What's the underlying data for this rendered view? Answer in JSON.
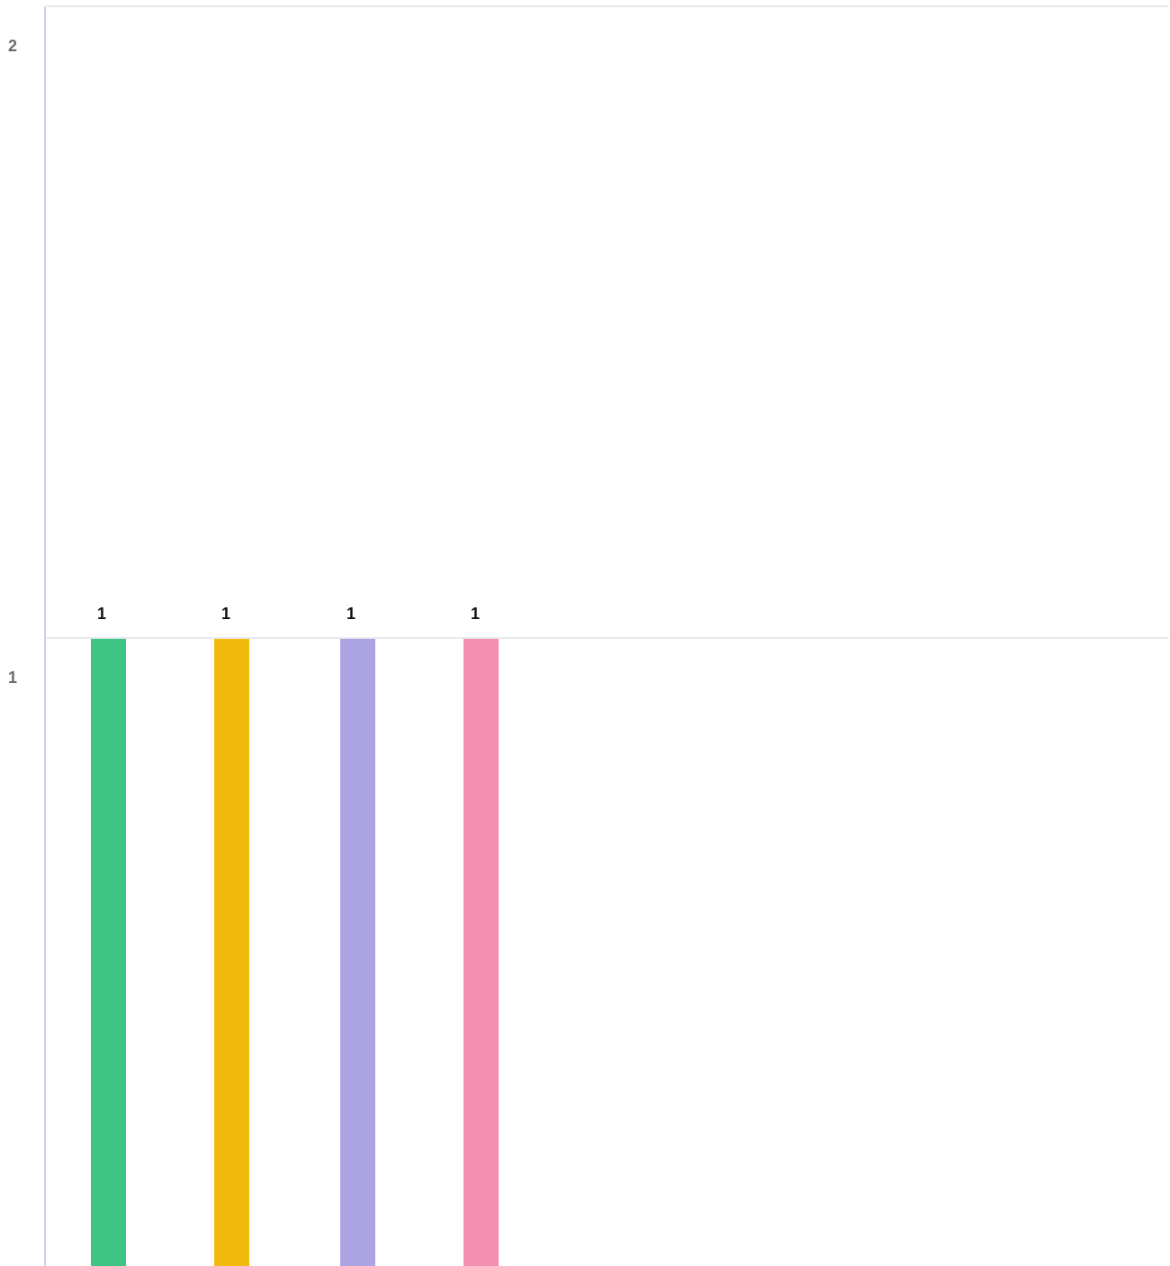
{
  "chart_data": {
    "type": "bar",
    "categories": [
      "",
      "",
      "",
      ""
    ],
    "values": [
      1,
      1,
      1,
      1
    ],
    "colors": [
      "#40c483",
      "#f2b90f",
      "#aca3e3",
      "#f38fb1"
    ],
    "data_labels": [
      "1",
      "1",
      "1",
      "1"
    ],
    "y_ticks": [
      {
        "value": 2,
        "label": "2"
      },
      {
        "value": 1,
        "label": "1"
      }
    ],
    "ylim": [
      0,
      2
    ],
    "grid": true,
    "title": "",
    "xlabel": "",
    "ylabel": ""
  }
}
